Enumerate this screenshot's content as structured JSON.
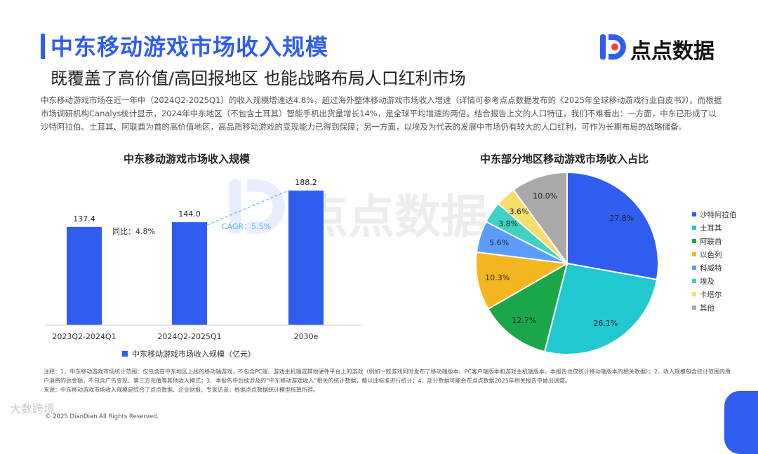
{
  "header": {
    "title": "中东移动游戏市场收入规模",
    "subtitle": "既覆盖了高价值/高回报地区 也能战略布局人口红利市场",
    "logo_text": "点点数据"
  },
  "intro": "中东移动游戏市场在近一年中（2024Q2-2025Q1）的收入规模增速达4.8%，超过海外整体移动游戏市场收入增速（详情可参考点点数据发布的《2025年全球移动游戏行业白皮书》）。而根据市场调研机构Canalys统计显示，2024年中东地区（不包含土耳其）智能手机出货量增长14%，是全球平均增速的两倍。结合报告上文的人口特征，我们不难看出：一方面，中东已形成了以沙特阿拉伯、土耳其、阿联酋为首的高价值地区，高品质移动游戏的变现能力已得到保障；另一方面，以埃及为代表的发展中市场仍有较大的人口红利，可作为长期布局的战略储备。",
  "watermark": "点点数据",
  "bar_chart": {
    "title": "中东移动游戏市场收入规模",
    "legend": "中东移动游戏市场收入规模（亿元）",
    "yoy_label": "同比：4.8%",
    "cagr_label": "CAGR：5.5%",
    "value_labels": [
      "137.4",
      "144.0",
      "188.2"
    ],
    "color": "#2f5df0"
  },
  "pie_chart": {
    "title": "中东部分地区移动游戏市场收入占比",
    "value_labels": [
      "27.8%",
      "26.1%",
      "12.7%",
      "10.3%",
      "5.6%",
      "3.8%",
      "3.6%",
      "10.0%"
    ]
  },
  "chart_data": [
    {
      "type": "bar",
      "title": "中东移动游戏市场收入规模",
      "categories": [
        "2023Q2-2024Q1",
        "2024Q2-2025Q1",
        "2030e"
      ],
      "series": [
        {
          "name": "中东移动游戏市场收入规模（亿元）",
          "values": [
            137.4,
            144.0,
            188.2
          ]
        }
      ],
      "ylim": [
        0,
        200
      ],
      "grid": false,
      "legend_position": "bottom"
    },
    {
      "type": "pie",
      "title": "中东部分地区移动游戏市场收入占比",
      "labels": [
        "沙特阿拉伯",
        "土耳其",
        "阿联酋",
        "以色列",
        "科威特",
        "埃及",
        "卡塔尔",
        "其他"
      ],
      "values": [
        27.8,
        26.1,
        12.7,
        10.3,
        5.6,
        3.8,
        3.6,
        10.0
      ],
      "colors": [
        "#2f5df0",
        "#1fc9cf",
        "#1aa74a",
        "#f3b61f",
        "#5a9dff",
        "#3fd1c2",
        "#f7dd6a",
        "#a9a9a9"
      ],
      "legend_position": "right"
    }
  ],
  "notes": "注释：1、中东移动游戏市场统计范围：仅包含在中东地区上线的移动端游戏，不包含PC端、游戏主机端或其他硬件平台上的游戏（例如一款游戏同时发布了移动端版本、PC客户端版本和游戏主机端版本，本报告也仅统计移动端版本的相关数据）；2、收入规模包含统计范围内用户消费的总金额，不包含广告变现、第三方充值等其他收入模式；3、本报告中后续涉及的“中东移动游戏收入”相关的统计数据，都以此标准进行统计；4、部分数据可能会在点点数据2025年相关报告中做出调整。",
  "source": "来源：中东移动游戏市场收入规模是综合了点点数据、企业财报、专家访谈，根据点点数据统计模型核算所得。",
  "copyright": "© 2025 DianDian All Rights Reserved.",
  "corner_mark": "大数跨境"
}
